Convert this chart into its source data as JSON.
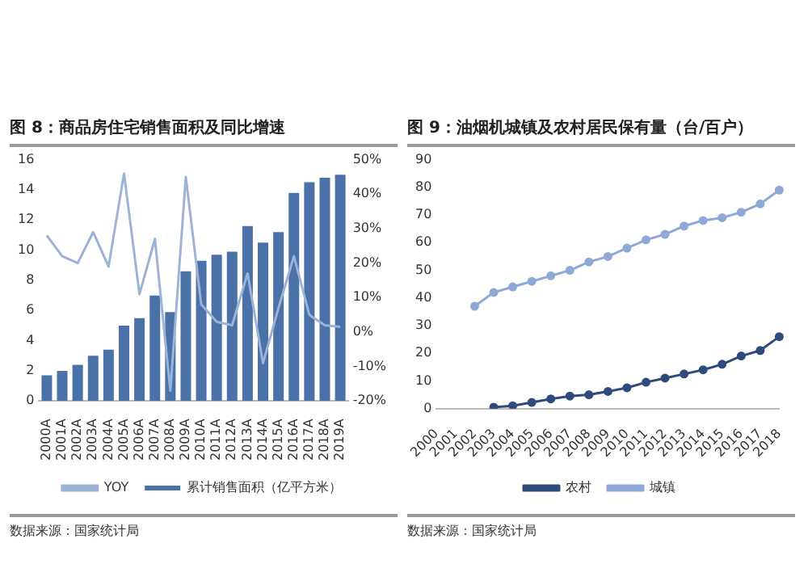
{
  "chart_data": [
    {
      "type": "bar",
      "title": "图 8：商品房住宅销售面积及同比增速",
      "categories": [
        "2000A",
        "2001A",
        "2002A",
        "2003A",
        "2004A",
        "2005A",
        "2006A",
        "2007A",
        "2008A",
        "2009A",
        "2010A",
        "2011A",
        "2012A",
        "2013A",
        "2014A",
        "2015A",
        "2016A",
        "2017A",
        "2018A",
        "2019A"
      ],
      "series": [
        {
          "name": "累计销售面积（亿平方米）",
          "type": "bar",
          "color": "#4a72a8",
          "values": [
            1.7,
            2.0,
            2.4,
            3.0,
            3.4,
            5.0,
            5.5,
            7.0,
            5.9,
            8.6,
            9.3,
            9.7,
            9.9,
            11.6,
            10.5,
            11.2,
            13.8,
            14.5,
            14.8,
            15.0
          ]
        },
        {
          "name": "YOY",
          "type": "line",
          "axis": "y2",
          "color": "#9db3d6",
          "values": [
            28,
            22,
            20,
            29,
            19,
            46,
            11,
            27,
            -17,
            45,
            8,
            3,
            2,
            17,
            -9,
            7,
            22,
            5,
            2,
            1.5
          ]
        }
      ],
      "ylim": [
        0,
        16
      ],
      "yticks": [
        0,
        2,
        4,
        6,
        8,
        10,
        12,
        14,
        16
      ],
      "y2lim": [
        -20,
        50
      ],
      "y2ticks": [
        {
          "value": -20,
          "label": "-20%"
        },
        {
          "value": -10,
          "label": "-10%"
        },
        {
          "value": 0,
          "label": "0%"
        },
        {
          "value": 10,
          "label": "10%"
        },
        {
          "value": 20,
          "label": "20%"
        },
        {
          "value": 30,
          "label": "30%"
        },
        {
          "value": 40,
          "label": "40%"
        },
        {
          "value": 50,
          "label": "50%"
        }
      ],
      "legend": "bottom",
      "marker": "none",
      "annotations": [
        "数据来源：国家统计局"
      ]
    },
    {
      "type": "line",
      "title": "图 9：油烟机城镇及农村居民保有量（台/百户）",
      "categories": [
        "2000",
        "2001",
        "2002",
        "2003",
        "2004",
        "2005",
        "2006",
        "2007",
        "2008",
        "2009",
        "2010",
        "2011",
        "2012",
        "2013",
        "2014",
        "2015",
        "2016",
        "2017",
        "2018"
      ],
      "series": [
        {
          "name": "农村",
          "color": "#2f4b7c",
          "values": [
            null,
            null,
            null,
            0.5,
            1,
            2.2,
            3.5,
            4.5,
            5,
            6.2,
            7.5,
            9.5,
            11,
            12.5,
            14,
            16,
            19,
            21,
            26
          ]
        },
        {
          "name": "城镇",
          "color": "#8fa9d6",
          "values": [
            null,
            null,
            37,
            42,
            44,
            46,
            48,
            50,
            53,
            55,
            58,
            61,
            63,
            66,
            68,
            69,
            71,
            74,
            79
          ]
        }
      ],
      "ylim": [
        0,
        90
      ],
      "yticks": [
        0,
        10,
        20,
        30,
        40,
        50,
        60,
        70,
        80,
        90
      ],
      "legend": "bottom",
      "marker": "circle",
      "annotations": [
        "数据来源：国家统计局"
      ]
    }
  ]
}
